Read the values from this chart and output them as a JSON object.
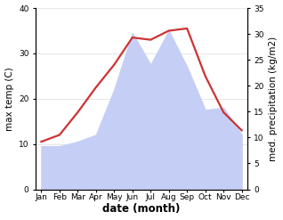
{
  "months": [
    "Jan",
    "Feb",
    "Mar",
    "Apr",
    "May",
    "Jun",
    "Jul",
    "Aug",
    "Sep",
    "Oct",
    "Nov",
    "Dec"
  ],
  "temperature": [
    10.5,
    12.0,
    17.0,
    22.5,
    27.5,
    33.5,
    33.0,
    35.0,
    35.5,
    25.0,
    17.0,
    13.0
  ],
  "precipitation": [
    9.5,
    9.5,
    10.5,
    12.0,
    22.0,
    34.5,
    27.5,
    35.0,
    27.0,
    17.5,
    18.0,
    12.0
  ],
  "temp_color": "#cc3333",
  "precip_fill_color": "#c5cff5",
  "precip_alpha": 1.0,
  "ylabel_left": "max temp (C)",
  "ylabel_right": "med. precipitation (kg/m2)",
  "xlabel": "date (month)",
  "ylim_left": [
    0,
    40
  ],
  "ylim_right": [
    0,
    35
  ],
  "yticks_left": [
    0,
    10,
    20,
    30,
    40
  ],
  "yticks_right": [
    0,
    5,
    10,
    15,
    20,
    25,
    30,
    35
  ],
  "bg_color": "#ffffff",
  "line_width": 1.6,
  "label_fontsize": 7.5,
  "tick_fontsize": 6.5,
  "xlabel_fontsize": 8.5
}
